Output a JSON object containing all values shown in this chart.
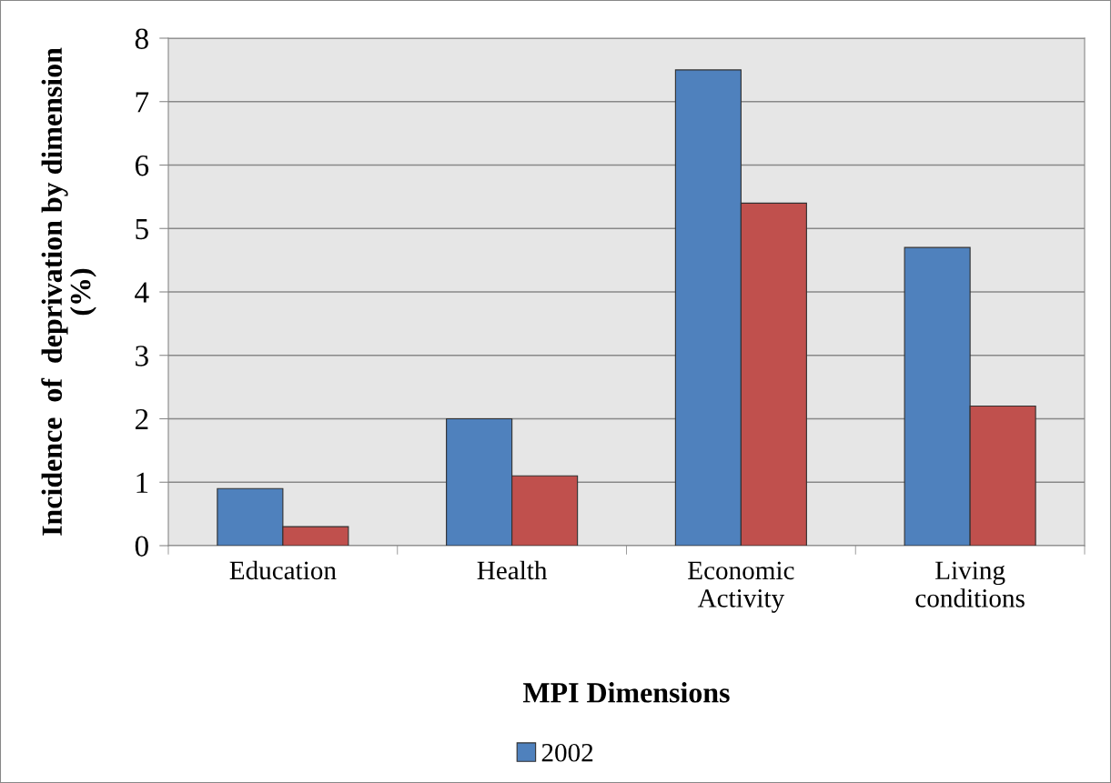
{
  "chart_data": {
    "type": "bar",
    "xlabel": "MPI Dimensions",
    "ylabel": "Incidence  of  deprivation by dimension\n(%)",
    "categories": [
      "Education",
      "Health",
      "Economic\nActivity",
      "Living\nconditions"
    ],
    "series": [
      {
        "name": "2002",
        "color": "#4f81bd",
        "values": [
          0.9,
          2.0,
          7.5,
          4.7
        ]
      },
      {
        "color": "#c0504d",
        "values": [
          0.3,
          1.1,
          5.4,
          2.2
        ]
      }
    ],
    "ylim": [
      0,
      8
    ],
    "yticks": [
      0,
      1,
      2,
      3,
      4,
      5,
      6,
      7,
      8
    ],
    "grid": "y",
    "legend": "bottom"
  }
}
